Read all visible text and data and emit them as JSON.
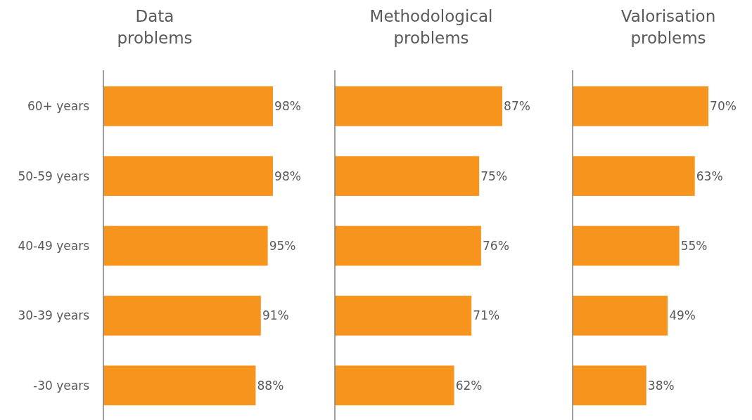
{
  "chart_data": [
    {
      "type": "bar",
      "orientation": "horizontal",
      "title": "Data problems",
      "categories": [
        "60+ years",
        "50-59 years",
        "40-49 years",
        "30-39 years",
        "-30 years"
      ],
      "values": [
        98,
        98,
        95,
        91,
        88
      ],
      "value_labels": [
        "98%",
        "98%",
        "95%",
        "91%",
        "88%"
      ],
      "color": "#f7941d",
      "tick_labels": "y"
    },
    {
      "type": "bar",
      "orientation": "horizontal",
      "title": "Methodological problems",
      "values": [
        87,
        75,
        76,
        71,
        62
      ],
      "value_labels": [
        "87%",
        "75%",
        "76%",
        "71%",
        "62%"
      ],
      "color": "#f7941d",
      "tick_labels": false
    },
    {
      "type": "bar",
      "orientation": "horizontal",
      "title": "Valorisation problems",
      "values": [
        70,
        63,
        55,
        49,
        38
      ],
      "value_labels": [
        "70%",
        "63%",
        "55%",
        "49%",
        "38%"
      ],
      "color": "#f7941d",
      "tick_labels": false
    }
  ]
}
